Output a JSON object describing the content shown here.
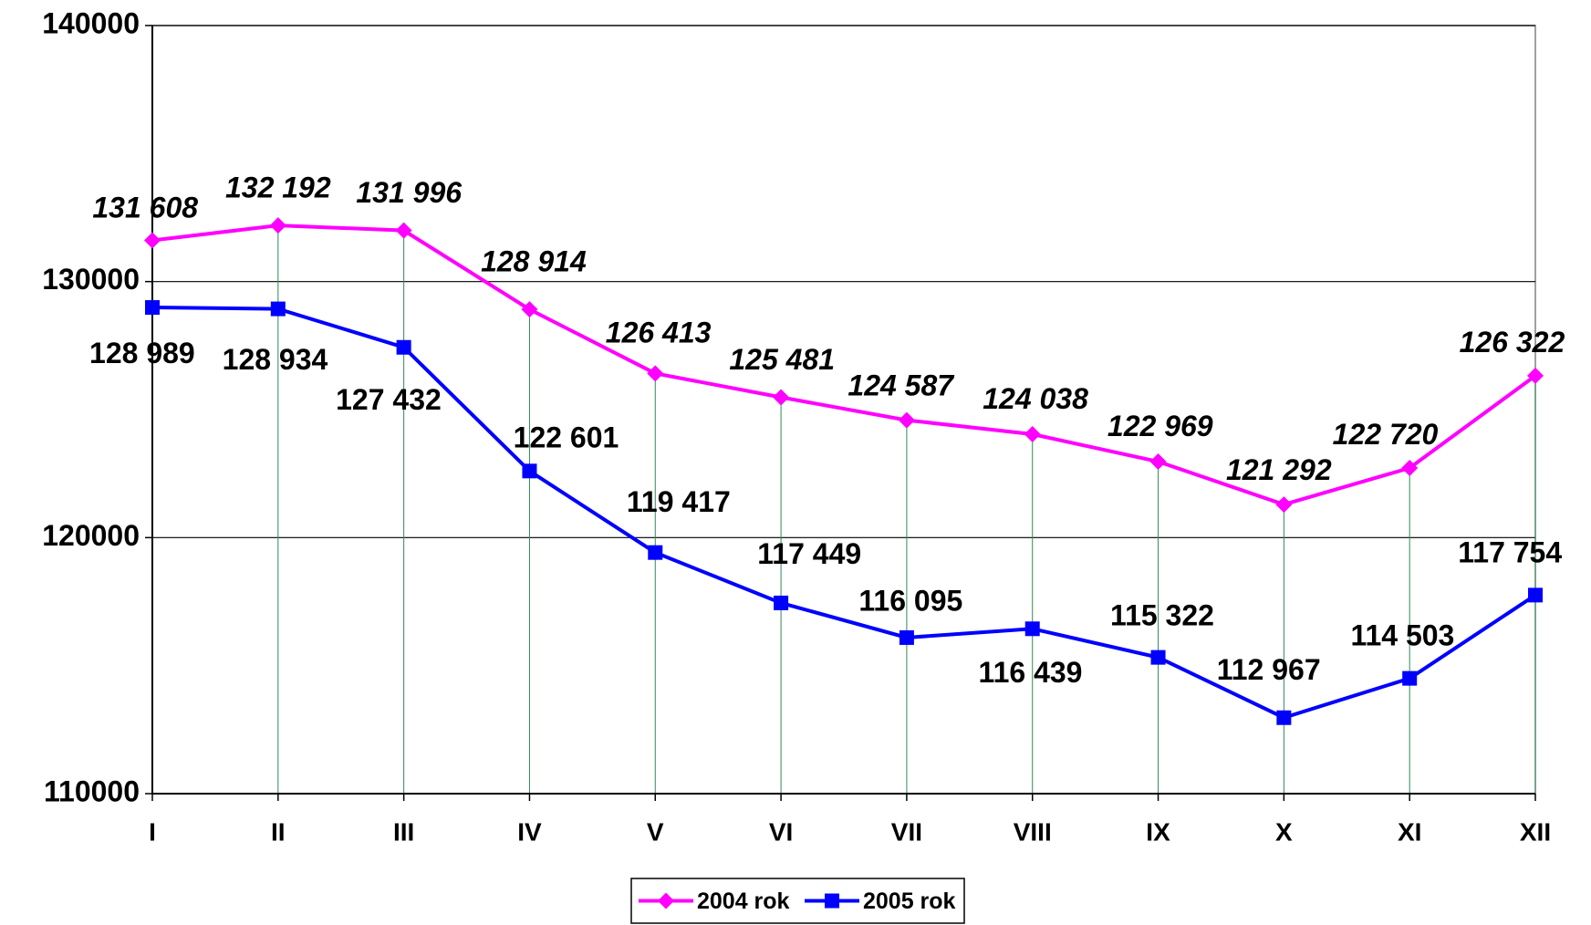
{
  "chart_data": {
    "type": "line",
    "categories": [
      "I",
      "II",
      "III",
      "IV",
      "V",
      "VI",
      "VII",
      "VIII",
      "IX",
      "X",
      "XI",
      "XII"
    ],
    "series": [
      {
        "name": "2004 rok",
        "color": "#ff00ff",
        "marker": "diamond",
        "values": [
          131608,
          132192,
          131996,
          128914,
          126413,
          125481,
          124587,
          124038,
          122969,
          121292,
          122720,
          126322
        ],
        "value_labels": [
          "131 608",
          "132 192",
          "131 996",
          "128 914",
          "126 413",
          "125 481",
          "124 587",
          "124 038",
          "122 969",
          "121 292",
          "122 720",
          "126 322"
        ]
      },
      {
        "name": "2005 rok",
        "color": "#0000ff",
        "marker": "square",
        "values": [
          128989,
          128934,
          127432,
          122601,
          119417,
          117449,
          116095,
          116439,
          115322,
          112967,
          114503,
          117754
        ],
        "value_labels": [
          "128 989",
          "128 934",
          "127 432",
          "122 601",
          "119 417",
          "117 449",
          "116 095",
          "116 439",
          "115 322",
          "112 967",
          "114 503",
          "117 754"
        ]
      }
    ],
    "ylim": [
      110000,
      140000
    ],
    "yticks": [
      110000,
      120000,
      130000,
      140000
    ],
    "grid": true,
    "legend": "bottom"
  }
}
